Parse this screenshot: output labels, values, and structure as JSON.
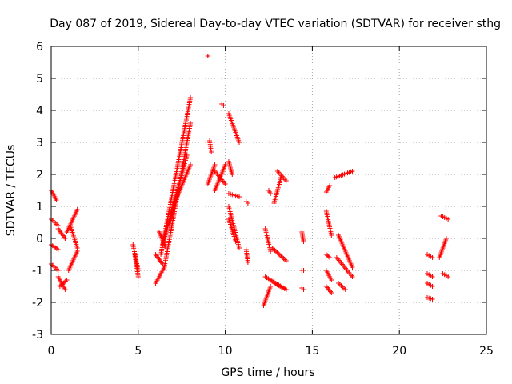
{
  "chart_data": {
    "type": "scatter",
    "title": "Day 087 of 2019, Sidereal Day-to-day VTEC variation (SDTVAR) for receiver sthg",
    "xlabel": "GPS time / hours",
    "ylabel": "SDTVAR / TECUs",
    "xlim": [
      0,
      25
    ],
    "ylim": [
      -3,
      6
    ],
    "xticks": [
      0,
      5,
      10,
      15,
      20,
      25
    ],
    "yticks": [
      -3,
      -2,
      -1,
      0,
      1,
      2,
      3,
      4,
      5,
      6
    ],
    "grid": true,
    "marker": "+",
    "color": "#ff0000",
    "segments": [
      {
        "x": [
          0.0,
          0.3
        ],
        "y": [
          1.5,
          1.2
        ]
      },
      {
        "x": [
          0.0,
          0.4
        ],
        "y": [
          0.6,
          0.4
        ]
      },
      {
        "x": [
          0.0,
          0.4
        ],
        "y": [
          -0.2,
          -0.35
        ]
      },
      {
        "x": [
          0.0,
          0.4
        ],
        "y": [
          -0.8,
          -1.0
        ]
      },
      {
        "x": [
          0.4,
          0.8
        ],
        "y": [
          -1.2,
          -1.6
        ]
      },
      {
        "x": [
          0.4,
          0.8
        ],
        "y": [
          0.3,
          0.0
        ]
      },
      {
        "x": [
          0.5,
          0.9
        ],
        "y": [
          -1.5,
          -1.3
        ]
      },
      {
        "x": [
          0.9,
          1.5
        ],
        "y": [
          0.2,
          0.9
        ]
      },
      {
        "x": [
          1.0,
          1.5
        ],
        "y": [
          -1.0,
          -0.4
        ]
      },
      {
        "x": [
          1.1,
          1.5
        ],
        "y": [
          0.4,
          -0.3
        ]
      },
      {
        "x": [
          4.7,
          5.0
        ],
        "y": [
          -0.2,
          -1.0
        ]
      },
      {
        "x": [
          4.8,
          5.0
        ],
        "y": [
          -0.5,
          -1.2
        ]
      },
      {
        "x": [
          6.0,
          6.5
        ],
        "y": [
          -1.4,
          -0.9
        ]
      },
      {
        "x": [
          6.0,
          6.4
        ],
        "y": [
          -0.5,
          -0.8
        ]
      },
      {
        "x": [
          6.2,
          6.6
        ],
        "y": [
          0.2,
          -0.3
        ]
      },
      {
        "x": [
          6.3,
          8.0
        ],
        "y": [
          -0.5,
          4.4
        ]
      },
      {
        "x": [
          6.5,
          8.0
        ],
        "y": [
          -0.9,
          3.6
        ]
      },
      {
        "x": [
          6.4,
          7.8
        ],
        "y": [
          -0.2,
          2.6
        ]
      },
      {
        "x": [
          7.0,
          8.0
        ],
        "y": [
          1.0,
          2.3
        ]
      },
      {
        "x": [
          6.8,
          7.4
        ],
        "y": [
          0.4,
          1.8
        ]
      },
      {
        "x": [
          9.0,
          9.0
        ],
        "y": [
          5.7,
          5.7
        ]
      },
      {
        "x": [
          9.1,
          9.2
        ],
        "y": [
          3.05,
          2.7
        ]
      },
      {
        "x": [
          9.0,
          9.4
        ],
        "y": [
          1.7,
          2.3
        ]
      },
      {
        "x": [
          9.4,
          10.0
        ],
        "y": [
          1.5,
          2.3
        ]
      },
      {
        "x": [
          9.4,
          10.0
        ],
        "y": [
          2.1,
          1.7
        ]
      },
      {
        "x": [
          9.8,
          9.9
        ],
        "y": [
          4.2,
          4.15
        ]
      },
      {
        "x": [
          10.2,
          10.8
        ],
        "y": [
          3.9,
          3.0
        ]
      },
      {
        "x": [
          10.2,
          10.4
        ],
        "y": [
          2.4,
          2.0
        ]
      },
      {
        "x": [
          10.2,
          10.8
        ],
        "y": [
          1.4,
          1.3
        ]
      },
      {
        "x": [
          10.2,
          10.8
        ],
        "y": [
          1.0,
          -0.3
        ]
      },
      {
        "x": [
          10.2,
          10.6
        ],
        "y": [
          0.6,
          -0.1
        ]
      },
      {
        "x": [
          11.2,
          11.3
        ],
        "y": [
          1.15,
          1.1
        ]
      },
      {
        "x": [
          11.2,
          11.3
        ],
        "y": [
          -0.35,
          -0.75
        ]
      },
      {
        "x": [
          12.2,
          12.6
        ],
        "y": [
          -2.1,
          -1.5
        ]
      },
      {
        "x": [
          12.3,
          13.5
        ],
        "y": [
          -1.2,
          -1.6
        ]
      },
      {
        "x": [
          12.8,
          13.5
        ],
        "y": [
          -1.4,
          -1.6
        ]
      },
      {
        "x": [
          12.3,
          12.6
        ],
        "y": [
          0.3,
          -0.4
        ]
      },
      {
        "x": [
          12.7,
          13.5
        ],
        "y": [
          -0.3,
          -0.7
        ]
      },
      {
        "x": [
          12.5,
          12.6
        ],
        "y": [
          1.5,
          1.4
        ]
      },
      {
        "x": [
          12.8,
          13.2
        ],
        "y": [
          1.1,
          1.9
        ]
      },
      {
        "x": [
          13.0,
          13.5
        ],
        "y": [
          2.1,
          1.8
        ]
      },
      {
        "x": [
          14.4,
          14.5
        ],
        "y": [
          0.2,
          -0.1
        ]
      },
      {
        "x": [
          14.4,
          14.5
        ],
        "y": [
          -1.0,
          -1.0
        ]
      },
      {
        "x": [
          14.4,
          14.5
        ],
        "y": [
          -1.55,
          -1.6
        ]
      },
      {
        "x": [
          15.8,
          16.0
        ],
        "y": [
          1.45,
          1.65
        ]
      },
      {
        "x": [
          15.8,
          16.1
        ],
        "y": [
          0.85,
          0.1
        ]
      },
      {
        "x": [
          15.8,
          16.0
        ],
        "y": [
          -0.5,
          -0.6
        ]
      },
      {
        "x": [
          15.8,
          16.1
        ],
        "y": [
          -1.0,
          -1.3
        ]
      },
      {
        "x": [
          15.8,
          16.1
        ],
        "y": [
          -1.5,
          -1.7
        ]
      },
      {
        "x": [
          16.3,
          17.3
        ],
        "y": [
          1.9,
          2.1
        ]
      },
      {
        "x": [
          16.5,
          17.3
        ],
        "y": [
          0.1,
          -0.9
        ]
      },
      {
        "x": [
          16.4,
          17.3
        ],
        "y": [
          -0.6,
          -1.2
        ]
      },
      {
        "x": [
          16.5,
          16.9
        ],
        "y": [
          -1.4,
          -1.6
        ]
      },
      {
        "x": [
          21.6,
          21.9
        ],
        "y": [
          -0.5,
          -0.6
        ]
      },
      {
        "x": [
          21.6,
          21.9
        ],
        "y": [
          -1.1,
          -1.2
        ]
      },
      {
        "x": [
          21.6,
          21.9
        ],
        "y": [
          -1.4,
          -1.5
        ]
      },
      {
        "x": [
          21.6,
          21.9
        ],
        "y": [
          -1.85,
          -1.9
        ]
      },
      {
        "x": [
          22.3,
          22.7
        ],
        "y": [
          -0.6,
          0.0
        ]
      },
      {
        "x": [
          22.5,
          22.8
        ],
        "y": [
          -1.1,
          -1.2
        ]
      },
      {
        "x": [
          22.4,
          22.8
        ],
        "y": [
          0.7,
          0.6
        ]
      }
    ]
  }
}
